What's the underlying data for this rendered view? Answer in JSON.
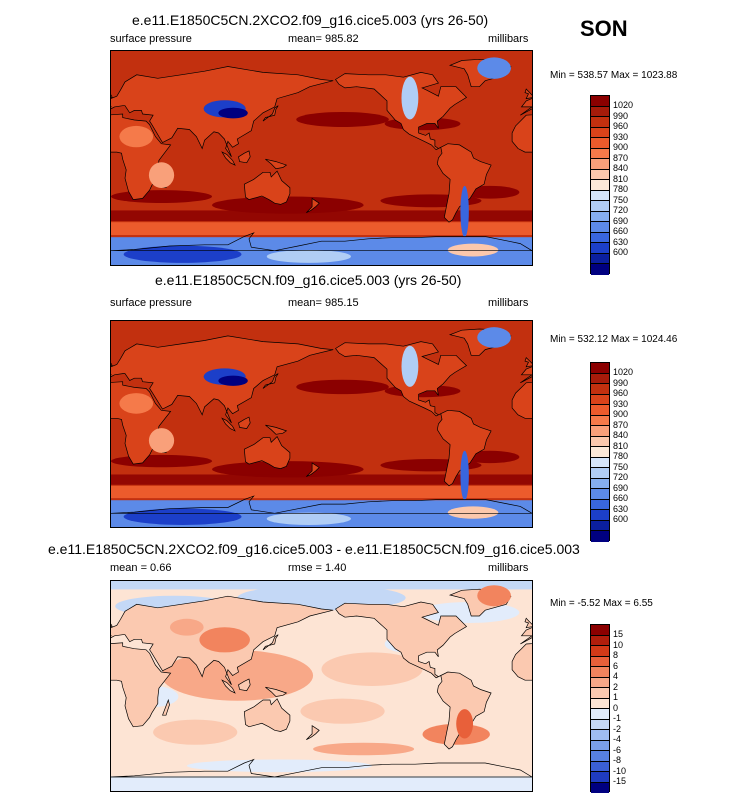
{
  "season": "SON",
  "panels": [
    {
      "title": "e.e11.E1850C5CN.2XCO2.f09_g16.cice5.003 (yrs 26-50)",
      "left_label": "surface pressure",
      "mid_label": "mean= 985.82",
      "right_label": "millibars",
      "minmax": "Min = 538.57 Max = 1023.88",
      "field": "abs",
      "colorbar": {
        "labels": [
          "1020",
          "990",
          "960",
          "930",
          "900",
          "870",
          "840",
          "810",
          "780",
          "750",
          "720",
          "690",
          "660",
          "630",
          "600"
        ],
        "colors": [
          "#8b0000",
          "#a61b0a",
          "#c2300f",
          "#d9431a",
          "#ec5b2c",
          "#f57a4a",
          "#f9a07a",
          "#fcc8ac",
          "#fde9d8",
          "#d6e6fb",
          "#b0cdf5",
          "#85aef0",
          "#5c8ae8",
          "#3966df",
          "#1c3fc9",
          "#0b1f9e",
          "#000080"
        ]
      }
    },
    {
      "title": "e.e11.E1850C5CN.f09_g16.cice5.003 (yrs 26-50)",
      "left_label": "surface pressure",
      "mid_label": "mean= 985.15",
      "right_label": "millibars",
      "minmax": "Min = 532.12 Max = 1024.46",
      "field": "abs",
      "colorbar": {
        "labels": [
          "1020",
          "990",
          "960",
          "930",
          "900",
          "870",
          "840",
          "810",
          "780",
          "750",
          "720",
          "690",
          "660",
          "630",
          "600"
        ],
        "colors": [
          "#8b0000",
          "#a61b0a",
          "#c2300f",
          "#d9431a",
          "#ec5b2c",
          "#f57a4a",
          "#f9a07a",
          "#fcc8ac",
          "#fde9d8",
          "#d6e6fb",
          "#b0cdf5",
          "#85aef0",
          "#5c8ae8",
          "#3966df",
          "#1c3fc9",
          "#0b1f9e",
          "#000080"
        ]
      }
    },
    {
      "title": "e.e11.E1850C5CN.2XCO2.f09_g16.cice5.003 - e.e11.E1850C5CN.f09_g16.cice5.003",
      "left_label": "mean =   0.66",
      "mid_label": "rmse =   1.40",
      "right_label": "millibars",
      "minmax": "Min =  -5.52 Max =   6.55",
      "field": "diff",
      "colorbar": {
        "labels": [
          "15",
          "10",
          "8",
          "6",
          "4",
          "2",
          "1",
          "0",
          "-1",
          "-2",
          "-4",
          "-6",
          "-8",
          "-10",
          "-15"
        ],
        "colors": [
          "#8b0000",
          "#b01e0c",
          "#d23a18",
          "#e8603a",
          "#f2845e",
          "#f8a888",
          "#fbc9b0",
          "#fde4d4",
          "#e2ecfb",
          "#c4d8f6",
          "#9fbdf1",
          "#7a9fea",
          "#5780e2",
          "#3a5fd6",
          "#1f3cbf",
          "#000080"
        ]
      }
    }
  ],
  "chart_data": [
    {
      "type": "heatmap",
      "title": "e.e11.E1850C5CN.2XCO2.f09_g16.cice5.003 (yrs 26-50)",
      "variable": "surface pressure",
      "units": "millibars",
      "mean": 985.82,
      "min": 538.57,
      "max": 1023.88,
      "contour_levels": [
        600,
        630,
        660,
        690,
        720,
        750,
        780,
        810,
        840,
        870,
        900,
        930,
        960,
        990,
        1020
      ]
    },
    {
      "type": "heatmap",
      "title": "e.e11.E1850C5CN.f09_g16.cice5.003 (yrs 26-50)",
      "variable": "surface pressure",
      "units": "millibars",
      "mean": 985.15,
      "min": 532.12,
      "max": 1024.46,
      "contour_levels": [
        600,
        630,
        660,
        690,
        720,
        750,
        780,
        810,
        840,
        870,
        900,
        930,
        960,
        990,
        1020
      ]
    },
    {
      "type": "heatmap",
      "title": "e.e11.E1850C5CN.2XCO2.f09_g16.cice5.003 - e.e11.E1850C5CN.f09_g16.cice5.003",
      "units": "millibars",
      "mean": 0.66,
      "rmse": 1.4,
      "min": -5.52,
      "max": 6.55,
      "contour_levels": [
        -15,
        -10,
        -8,
        -6,
        -4,
        -2,
        -1,
        0,
        1,
        2,
        4,
        6,
        8,
        10,
        15
      ]
    }
  ]
}
